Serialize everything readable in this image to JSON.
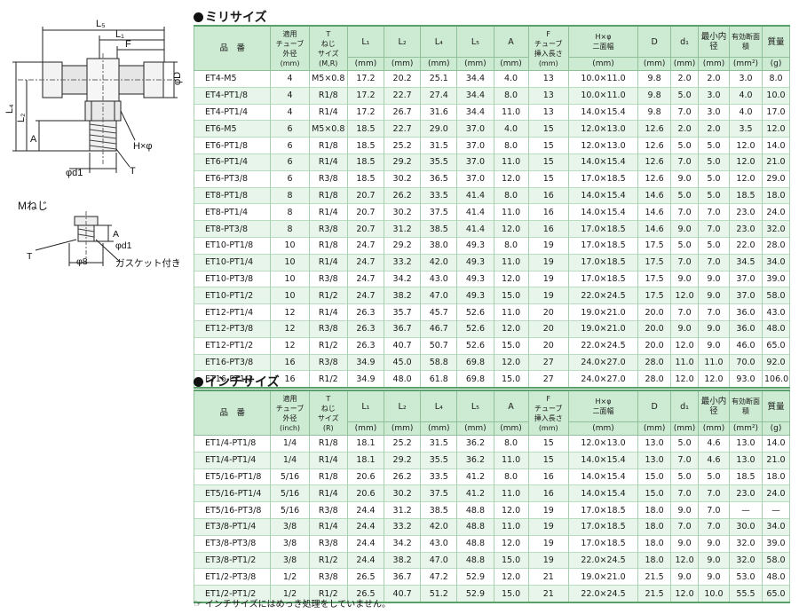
{
  "drawing": {
    "labels": {
      "L5": "L₅",
      "L1": "L₁",
      "F": "F",
      "L4": "L₄",
      "L2": "L₂",
      "A": "A",
      "phiD": "φD",
      "Hphi": "H×φ",
      "phid1": "φd1",
      "T": "T",
      "mneji": "Mねじ",
      "A2": "A",
      "phid1_2": "φd1",
      "T2": "T",
      "phi8": "φ8",
      "gasket": "ガスケット付き"
    }
  },
  "milli": {
    "title": "ミリサイズ",
    "headers": [
      {
        "main": "品　番",
        "unit": ""
      },
      {
        "main": "適用\nチューブ\n外径\n(mm)",
        "unit": ""
      },
      {
        "main": "T\nねじ\nサイズ\n(M,R)",
        "unit": ""
      },
      {
        "main": "L₁",
        "unit": "(mm)"
      },
      {
        "main": "L₂",
        "unit": "(mm)"
      },
      {
        "main": "L₄",
        "unit": "(mm)"
      },
      {
        "main": "L₅",
        "unit": "(mm)"
      },
      {
        "main": "A",
        "unit": "(mm)"
      },
      {
        "main": "F\nチューブ\n挿入長さ\n(mm)",
        "unit": ""
      },
      {
        "main": "H×φ\n二面幅",
        "unit": "(mm)"
      },
      {
        "main": "D",
        "unit": "(mm)"
      },
      {
        "main": "d₁",
        "unit": "(mm)"
      },
      {
        "main": "最小内径",
        "unit": "(mm)"
      },
      {
        "main": "有効断面積",
        "unit": "(mm²)"
      },
      {
        "main": "質量",
        "unit": "(g)"
      }
    ],
    "rows": [
      [
        "ET4-M5",
        "4",
        "M5×0.8",
        "17.2",
        "20.2",
        "25.1",
        "34.4",
        "4.0",
        "13",
        "10.0×11.0",
        "9.8",
        "2.0",
        "2.0",
        "3.0",
        "8.0"
      ],
      [
        "ET4-PT1/8",
        "4",
        "R1/8",
        "17.2",
        "22.7",
        "27.4",
        "34.4",
        "8.0",
        "13",
        "10.0×11.0",
        "9.8",
        "5.0",
        "3.0",
        "4.0",
        "10.0"
      ],
      [
        "ET4-PT1/4",
        "4",
        "R1/4",
        "17.2",
        "26.7",
        "31.6",
        "34.4",
        "11.0",
        "13",
        "14.0×15.4",
        "9.8",
        "7.0",
        "3.0",
        "4.0",
        "17.0"
      ],
      [
        "ET6-M5",
        "6",
        "M5×0.8",
        "18.5",
        "22.7",
        "29.0",
        "37.0",
        "4.0",
        "15",
        "12.0×13.0",
        "12.6",
        "2.0",
        "2.0",
        "3.5",
        "12.0"
      ],
      [
        "ET6-PT1/8",
        "6",
        "R1/8",
        "18.5",
        "25.2",
        "31.5",
        "37.0",
        "8.0",
        "15",
        "12.0×13.0",
        "12.6",
        "5.0",
        "5.0",
        "12.0",
        "14.0"
      ],
      [
        "ET6-PT1/4",
        "6",
        "R1/4",
        "18.5",
        "29.2",
        "35.5",
        "37.0",
        "11.0",
        "15",
        "14.0×15.4",
        "12.6",
        "7.0",
        "5.0",
        "12.0",
        "21.0"
      ],
      [
        "ET6-PT3/8",
        "6",
        "R3/8",
        "18.5",
        "30.2",
        "36.5",
        "37.0",
        "12.0",
        "15",
        "17.0×18.5",
        "12.6",
        "9.0",
        "5.0",
        "12.0",
        "29.0"
      ],
      [
        "ET8-PT1/8",
        "8",
        "R1/8",
        "20.7",
        "26.2",
        "33.5",
        "41.4",
        "8.0",
        "16",
        "14.0×15.4",
        "14.6",
        "5.0",
        "5.0",
        "18.5",
        "18.0"
      ],
      [
        "ET8-PT1/4",
        "8",
        "R1/4",
        "20.7",
        "30.2",
        "37.5",
        "41.4",
        "11.0",
        "16",
        "14.0×15.4",
        "14.6",
        "7.0",
        "7.0",
        "23.0",
        "24.0"
      ],
      [
        "ET8-PT3/8",
        "8",
        "R3/8",
        "20.7",
        "31.2",
        "38.5",
        "41.4",
        "12.0",
        "16",
        "17.0×18.5",
        "14.6",
        "9.0",
        "7.0",
        "23.0",
        "32.0"
      ],
      [
        "ET10-PT1/8",
        "10",
        "R1/8",
        "24.7",
        "29.2",
        "38.0",
        "49.3",
        "8.0",
        "19",
        "17.0×18.5",
        "17.5",
        "5.0",
        "5.0",
        "22.0",
        "28.0"
      ],
      [
        "ET10-PT1/4",
        "10",
        "R1/4",
        "24.7",
        "33.2",
        "42.0",
        "49.3",
        "11.0",
        "19",
        "17.0×18.5",
        "17.5",
        "7.0",
        "7.0",
        "34.5",
        "34.0"
      ],
      [
        "ET10-PT3/8",
        "10",
        "R3/8",
        "24.7",
        "34.2",
        "43.0",
        "49.3",
        "12.0",
        "19",
        "17.0×18.5",
        "17.5",
        "9.0",
        "9.0",
        "37.0",
        "39.0"
      ],
      [
        "ET10-PT1/2",
        "10",
        "R1/2",
        "24.7",
        "38.2",
        "47.0",
        "49.3",
        "15.0",
        "19",
        "22.0×24.5",
        "17.5",
        "12.0",
        "9.0",
        "37.0",
        "58.0"
      ],
      [
        "ET12-PT1/4",
        "12",
        "R1/4",
        "26.3",
        "35.7",
        "45.7",
        "52.6",
        "11.0",
        "20",
        "19.0×21.0",
        "20.0",
        "7.0",
        "7.0",
        "36.0",
        "43.0"
      ],
      [
        "ET12-PT3/8",
        "12",
        "R3/8",
        "26.3",
        "36.7",
        "46.7",
        "52.6",
        "12.0",
        "20",
        "19.0×21.0",
        "20.0",
        "9.0",
        "9.0",
        "36.0",
        "48.0"
      ],
      [
        "ET12-PT1/2",
        "12",
        "R1/2",
        "26.3",
        "40.7",
        "50.7",
        "52.6",
        "15.0",
        "20",
        "22.0×24.5",
        "20.0",
        "12.0",
        "9.0",
        "46.0",
        "65.0"
      ],
      [
        "ET16-PT3/8",
        "16",
        "R3/8",
        "34.9",
        "45.0",
        "58.8",
        "69.8",
        "12.0",
        "27",
        "24.0×27.0",
        "28.0",
        "11.0",
        "11.0",
        "70.0",
        "92.0"
      ],
      [
        "ET16-PT1/2",
        "16",
        "R1/2",
        "34.9",
        "48.0",
        "61.8",
        "69.8",
        "15.0",
        "27",
        "24.0×27.0",
        "28.0",
        "12.0",
        "12.0",
        "93.0",
        "106.0"
      ]
    ]
  },
  "inch": {
    "title": "インチサイズ",
    "headers": [
      {
        "main": "品　番",
        "unit": ""
      },
      {
        "main": "適用\nチューブ\n外径\n(inch)",
        "unit": ""
      },
      {
        "main": "T\nねじ\nサイズ\n(R)",
        "unit": ""
      },
      {
        "main": "L₁",
        "unit": "(mm)"
      },
      {
        "main": "L₂",
        "unit": "(mm)"
      },
      {
        "main": "L₄",
        "unit": "(mm)"
      },
      {
        "main": "L₅",
        "unit": "(mm)"
      },
      {
        "main": "A",
        "unit": "(mm)"
      },
      {
        "main": "F\nチューブ\n挿入長さ\n(mm)",
        "unit": ""
      },
      {
        "main": "H×φ\n二面幅",
        "unit": "(mm)"
      },
      {
        "main": "D",
        "unit": "(mm)"
      },
      {
        "main": "d₁",
        "unit": "(mm)"
      },
      {
        "main": "最小内径",
        "unit": "(mm)"
      },
      {
        "main": "有効断面積",
        "unit": "(mm²)"
      },
      {
        "main": "質量",
        "unit": "(g)"
      }
    ],
    "rows": [
      [
        "ET1/4-PT1/8",
        "1/4",
        "R1/8",
        "18.1",
        "25.2",
        "31.5",
        "36.2",
        "8.0",
        "15",
        "12.0×13.0",
        "13.0",
        "5.0",
        "4.6",
        "13.0",
        "14.0"
      ],
      [
        "ET1/4-PT1/4",
        "1/4",
        "R1/4",
        "18.1",
        "29.2",
        "35.5",
        "36.2",
        "11.0",
        "15",
        "14.0×15.4",
        "13.0",
        "7.0",
        "4.6",
        "13.0",
        "21.0"
      ],
      [
        "ET5/16-PT1/8",
        "5/16",
        "R1/8",
        "20.6",
        "26.2",
        "33.5",
        "41.2",
        "8.0",
        "16",
        "14.0×15.4",
        "15.0",
        "5.0",
        "5.0",
        "18.5",
        "18.0"
      ],
      [
        "ET5/16-PT1/4",
        "5/16",
        "R1/4",
        "20.6",
        "30.2",
        "37.5",
        "41.2",
        "11.0",
        "16",
        "14.0×15.4",
        "15.0",
        "7.0",
        "7.0",
        "23.0",
        "24.0"
      ],
      [
        "ET5/16-PT3/8",
        "5/16",
        "R3/8",
        "24.4",
        "31.2",
        "38.5",
        "48.8",
        "12.0",
        "19",
        "17.0×18.5",
        "18.0",
        "9.0",
        "7.0",
        "—",
        "—"
      ],
      [
        "ET3/8-PT1/4",
        "3/8",
        "R1/4",
        "24.4",
        "33.2",
        "42.0",
        "48.8",
        "11.0",
        "19",
        "17.0×18.5",
        "18.0",
        "7.0",
        "7.0",
        "30.0",
        "34.0"
      ],
      [
        "ET3/8-PT3/8",
        "3/8",
        "R3/8",
        "24.4",
        "34.2",
        "43.0",
        "48.8",
        "12.0",
        "19",
        "17.0×18.5",
        "18.0",
        "9.0",
        "9.0",
        "32.0",
        "39.0"
      ],
      [
        "ET3/8-PT1/2",
        "3/8",
        "R1/2",
        "24.4",
        "38.2",
        "47.0",
        "48.8",
        "15.0",
        "19",
        "22.0×24.5",
        "18.0",
        "12.0",
        "9.0",
        "32.0",
        "58.0"
      ],
      [
        "ET1/2-PT3/8",
        "1/2",
        "R3/8",
        "26.5",
        "36.7",
        "47.2",
        "52.9",
        "12.0",
        "21",
        "19.0×21.0",
        "21.5",
        "9.0",
        "9.0",
        "53.0",
        "48.0"
      ],
      [
        "ET1/2-PT1/2",
        "1/2",
        "R1/2",
        "26.5",
        "40.7",
        "51.2",
        "52.9",
        "15.0",
        "21",
        "22.0×24.5",
        "21.5",
        "12.0",
        "10.0",
        "55.5",
        "65.0"
      ]
    ]
  },
  "note": {
    "icon": "pointing-hand-icon",
    "text": "インチサイズにはめっき処理をしていません。"
  }
}
